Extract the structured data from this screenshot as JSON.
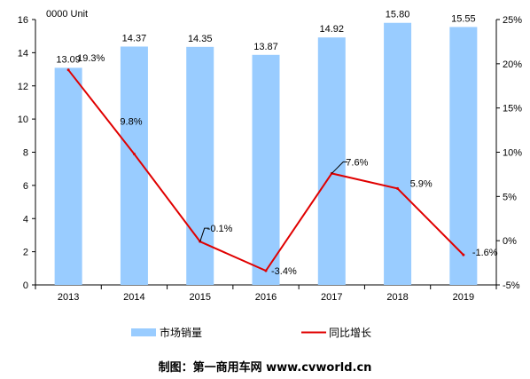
{
  "chart_data": {
    "type": "bar",
    "unit_label": "0000 Unit",
    "categories": [
      "2013",
      "2014",
      "2015",
      "2016",
      "2017",
      "2018",
      "2019"
    ],
    "series": [
      {
        "name": "市场销量",
        "type": "bar",
        "axis": "left",
        "color": "#99ccff",
        "values": [
          13.09,
          14.37,
          14.35,
          13.87,
          14.92,
          15.8,
          15.55
        ],
        "labels": [
          "13.09",
          "14.37",
          "14.35",
          "13.87",
          "14.92",
          "15.80",
          "15.55"
        ]
      },
      {
        "name": "同比增长",
        "type": "line",
        "axis": "right",
        "color": "#e00000",
        "values": [
          19.3,
          9.8,
          -0.1,
          -3.4,
          7.6,
          5.9,
          -1.6
        ],
        "labels": [
          "19.3%",
          "9.8%",
          "-0.1%",
          "-3.4%",
          "7.6%",
          "5.9%",
          "-1.6%"
        ]
      }
    ],
    "y_left": {
      "min": 0,
      "max": 16,
      "ticks": [
        "0",
        "2",
        "4",
        "6",
        "8",
        "10",
        "12",
        "14",
        "16"
      ]
    },
    "y_right": {
      "min": -5,
      "max": 25,
      "ticks": [
        "-5%",
        "0%",
        "5%",
        "10%",
        "15%",
        "20%",
        "25%"
      ]
    },
    "legend_position": "bottom",
    "grid": false
  },
  "footer": {
    "credit": "制图：第一商用车网 www.cvworld.cn"
  }
}
